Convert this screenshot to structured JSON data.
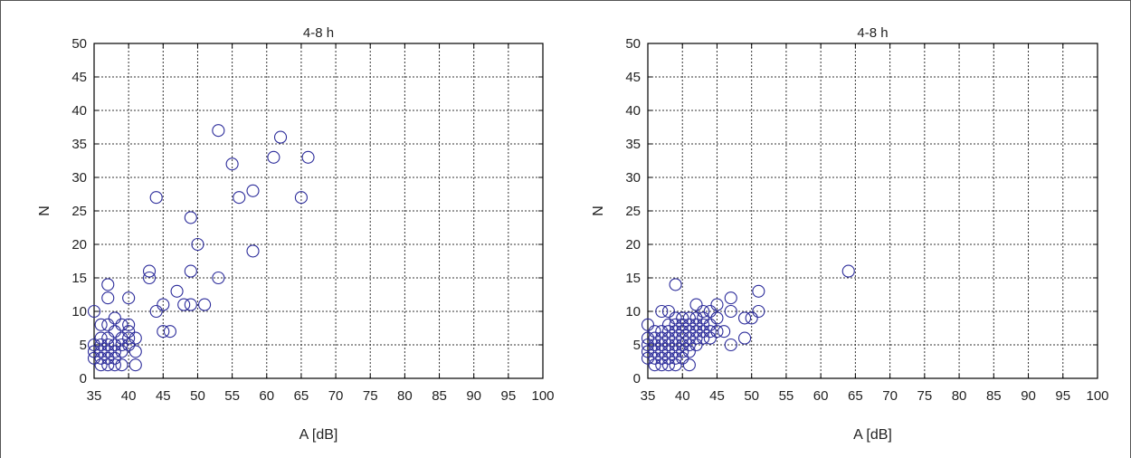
{
  "chart_data": [
    {
      "type": "scatter",
      "title": "4-8 h",
      "xlabel": "A [dB]",
      "ylabel": "N",
      "xlim": [
        35,
        100
      ],
      "ylim": [
        0,
        50
      ],
      "xticks": [
        "35",
        "40",
        "45",
        "50",
        "55",
        "60",
        "65",
        "70",
        "75",
        "80",
        "85",
        "90",
        "95",
        "100"
      ],
      "yticks": [
        "0",
        "5",
        "10",
        "15",
        "20",
        "25",
        "30",
        "35",
        "40",
        "45",
        "50"
      ],
      "grid": true,
      "marker": "circle",
      "marker_color": "#2b2b9a",
      "points": [
        [
          35,
          10
        ],
        [
          35,
          5
        ],
        [
          35,
          4
        ],
        [
          35,
          3
        ],
        [
          36,
          8
        ],
        [
          36,
          6
        ],
        [
          36,
          5
        ],
        [
          36,
          4
        ],
        [
          36,
          3
        ],
        [
          36,
          2
        ],
        [
          37,
          14
        ],
        [
          37,
          12
        ],
        [
          37,
          8
        ],
        [
          37,
          6
        ],
        [
          37,
          5
        ],
        [
          37,
          4
        ],
        [
          37,
          3
        ],
        [
          37,
          2
        ],
        [
          38,
          9
        ],
        [
          38,
          7
        ],
        [
          38,
          5
        ],
        [
          38,
          4
        ],
        [
          38,
          3
        ],
        [
          38,
          2
        ],
        [
          39,
          8
        ],
        [
          39,
          6
        ],
        [
          39,
          5
        ],
        [
          39,
          4
        ],
        [
          39,
          2
        ],
        [
          40,
          12
        ],
        [
          40,
          8
        ],
        [
          40,
          7
        ],
        [
          40,
          6
        ],
        [
          40,
          5
        ],
        [
          41,
          6
        ],
        [
          41,
          4
        ],
        [
          41,
          2
        ],
        [
          43,
          16
        ],
        [
          43,
          15
        ],
        [
          44,
          27
        ],
        [
          44,
          10
        ],
        [
          45,
          11
        ],
        [
          45,
          7
        ],
        [
          46,
          7
        ],
        [
          47,
          13
        ],
        [
          48,
          11
        ],
        [
          49,
          24
        ],
        [
          49,
          16
        ],
        [
          49,
          11
        ],
        [
          50,
          20
        ],
        [
          51,
          11
        ],
        [
          53,
          37
        ],
        [
          53,
          15
        ],
        [
          55,
          32
        ],
        [
          56,
          27
        ],
        [
          58,
          28
        ],
        [
          58,
          19
        ],
        [
          61,
          33
        ],
        [
          62,
          36
        ],
        [
          65,
          27
        ],
        [
          66,
          33
        ]
      ]
    },
    {
      "type": "scatter",
      "title": "4-8 h",
      "xlabel": "A [dB]",
      "ylabel": "N",
      "xlim": [
        35,
        100
      ],
      "ylim": [
        0,
        50
      ],
      "xticks": [
        "35",
        "40",
        "45",
        "50",
        "55",
        "60",
        "65",
        "70",
        "75",
        "80",
        "85",
        "90",
        "95",
        "100"
      ],
      "yticks": [
        "0",
        "5",
        "10",
        "15",
        "20",
        "25",
        "30",
        "35",
        "40",
        "45",
        "50"
      ],
      "grid": true,
      "marker": "circle",
      "marker_color": "#2b2b9a",
      "points": [
        [
          35,
          8
        ],
        [
          35,
          6
        ],
        [
          35,
          5
        ],
        [
          35,
          4
        ],
        [
          35,
          3
        ],
        [
          36,
          7
        ],
        [
          36,
          6
        ],
        [
          36,
          5
        ],
        [
          36,
          4
        ],
        [
          36,
          3
        ],
        [
          36,
          2
        ],
        [
          37,
          10
        ],
        [
          37,
          7
        ],
        [
          37,
          6
        ],
        [
          37,
          5
        ],
        [
          37,
          4
        ],
        [
          37,
          3
        ],
        [
          37,
          2
        ],
        [
          38,
          10
        ],
        [
          38,
          8
        ],
        [
          38,
          7
        ],
        [
          38,
          6
        ],
        [
          38,
          5
        ],
        [
          38,
          4
        ],
        [
          38,
          3
        ],
        [
          38,
          2
        ],
        [
          39,
          14
        ],
        [
          39,
          9
        ],
        [
          39,
          8
        ],
        [
          39,
          7
        ],
        [
          39,
          6
        ],
        [
          39,
          5
        ],
        [
          39,
          4
        ],
        [
          39,
          3
        ],
        [
          39,
          2
        ],
        [
          40,
          9
        ],
        [
          40,
          8
        ],
        [
          40,
          7
        ],
        [
          40,
          6
        ],
        [
          40,
          5
        ],
        [
          40,
          4
        ],
        [
          40,
          3
        ],
        [
          41,
          9
        ],
        [
          41,
          8
        ],
        [
          41,
          7
        ],
        [
          41,
          6
        ],
        [
          41,
          5
        ],
        [
          41,
          4
        ],
        [
          41,
          2
        ],
        [
          42,
          11
        ],
        [
          42,
          9
        ],
        [
          42,
          8
        ],
        [
          42,
          7
        ],
        [
          42,
          6
        ],
        [
          42,
          5
        ],
        [
          43,
          10
        ],
        [
          43,
          9
        ],
        [
          43,
          8
        ],
        [
          43,
          7
        ],
        [
          43,
          6
        ],
        [
          44,
          10
        ],
        [
          44,
          8
        ],
        [
          44,
          7
        ],
        [
          44,
          6
        ],
        [
          45,
          11
        ],
        [
          45,
          9
        ],
        [
          45,
          7
        ],
        [
          46,
          7
        ],
        [
          47,
          12
        ],
        [
          47,
          10
        ],
        [
          47,
          5
        ],
        [
          49,
          9
        ],
        [
          49,
          6
        ],
        [
          50,
          9
        ],
        [
          51,
          13
        ],
        [
          51,
          10
        ],
        [
          64,
          16
        ]
      ]
    }
  ]
}
